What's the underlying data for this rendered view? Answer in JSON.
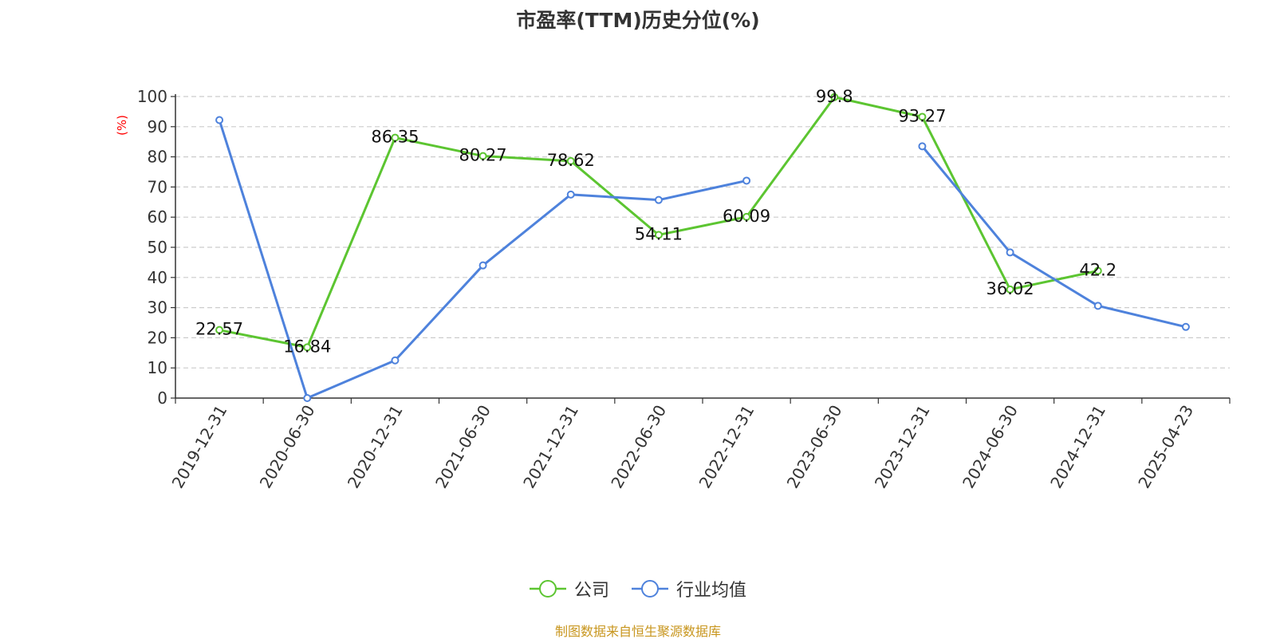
{
  "chart_data": {
    "type": "line",
    "title": "市盈率(TTM)历史分位(%)",
    "ylabel": "(%)",
    "xlabel": "",
    "ylim": [
      0,
      100
    ],
    "yticks": [
      0,
      10,
      20,
      30,
      40,
      50,
      60,
      70,
      80,
      90,
      100
    ],
    "grid": true,
    "legend_position": "bottom-center",
    "categories": [
      "2019-12-31",
      "2020-06-30",
      "2020-12-31",
      "2021-06-30",
      "2021-12-31",
      "2022-06-30",
      "2022-12-31",
      "2023-06-30",
      "2023-12-31",
      "2024-06-30",
      "2024-12-31",
      "2025-04-23"
    ],
    "series": [
      {
        "name": "公司",
        "color": "#5cc531",
        "values": [
          22.57,
          16.84,
          86.35,
          80.27,
          78.62,
          54.11,
          60.09,
          99.8,
          93.27,
          36.02,
          42.2,
          null
        ],
        "labels": [
          "22.57",
          "16.84",
          "86.35",
          "80.27",
          "78.62",
          "54.11",
          "60.09",
          "99.8",
          "93.27",
          "36.02",
          "42.2",
          null
        ]
      },
      {
        "name": "行业均值",
        "color": "#4e82dc",
        "values": [
          92.2,
          0,
          12.5,
          44.0,
          67.5,
          65.7,
          72.1,
          null,
          83.5,
          48.3,
          30.6,
          23.6
        ]
      }
    ]
  },
  "source": "制图数据来自恒生聚源数据库"
}
